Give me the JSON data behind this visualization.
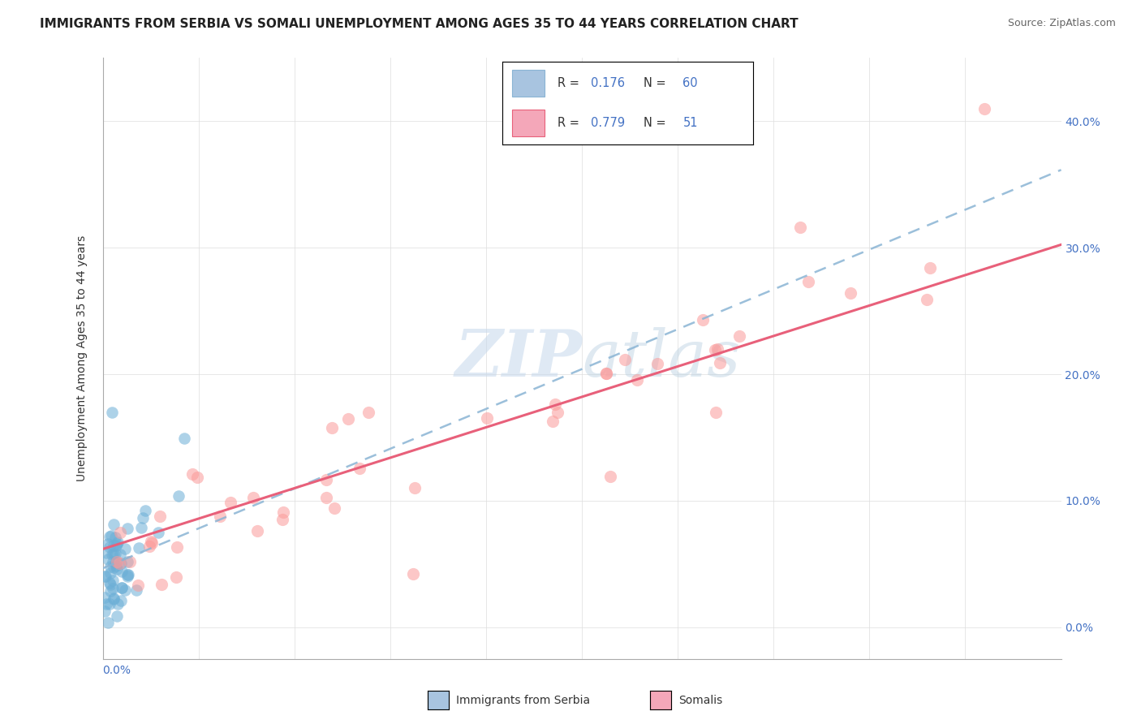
{
  "title": "IMMIGRANTS FROM SERBIA VS SOMALI UNEMPLOYMENT AMONG AGES 35 TO 44 YEARS CORRELATION CHART",
  "source": "Source: ZipAtlas.com",
  "ylabel": "Unemployment Among Ages 35 to 44 years",
  "ytick_vals": [
    0.0,
    0.1,
    0.2,
    0.3,
    0.4
  ],
  "xlim": [
    0.0,
    0.5
  ],
  "ylim": [
    -0.025,
    0.45
  ],
  "legend_serbia": {
    "R": 0.176,
    "N": 60,
    "color": "#a8c4e0",
    "line_color": "#8ab4d4"
  },
  "legend_somali": {
    "R": 0.779,
    "N": 51,
    "color": "#f4a7b9",
    "line_color": "#e8607a"
  },
  "serbia_scatter_color": "#6baed6",
  "somali_scatter_color": "#fb9a99",
  "watermark_zip": "ZIP",
  "watermark_atlas": "atlas",
  "title_fontsize": 11,
  "axis_label_fontsize": 10,
  "tick_fontsize": 10,
  "source_fontsize": 9
}
